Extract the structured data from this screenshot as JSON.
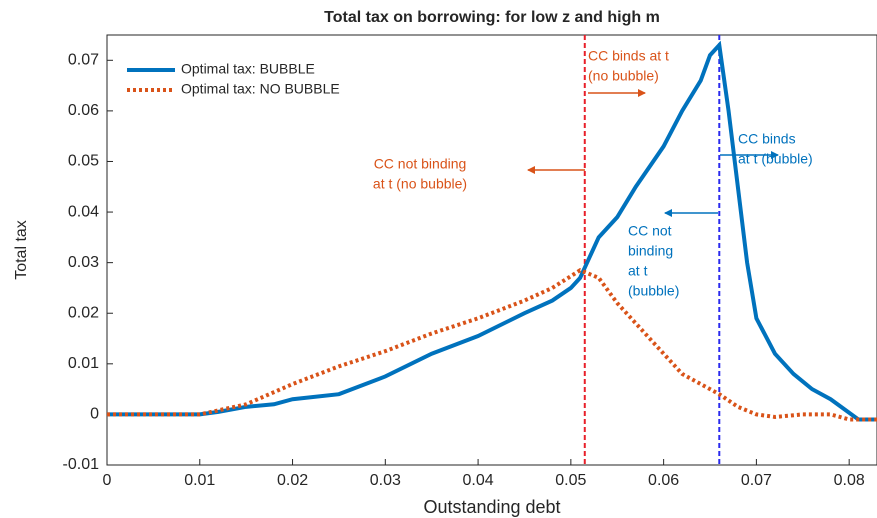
{
  "chart_data": {
    "type": "line",
    "title": "Total tax on borrowing: for low z and high m",
    "x_label": "Outstanding debt",
    "y_label": "Total tax",
    "xlim": [
      0,
      0.083
    ],
    "ylim": [
      -0.01,
      0.075
    ],
    "xticks": [
      0,
      0.01,
      0.02,
      0.03,
      0.04,
      0.05,
      0.06,
      0.07,
      0.08
    ],
    "yticks": [
      -0.01,
      0,
      0.01,
      0.02,
      0.03,
      0.04,
      0.05,
      0.06,
      0.07
    ],
    "legend": "upper left",
    "series": [
      {
        "name": "Optimal tax: BUBBLE",
        "color": "#0072bd",
        "style": "solid",
        "x": [
          0,
          0.005,
          0.01,
          0.012,
          0.015,
          0.018,
          0.02,
          0.025,
          0.03,
          0.035,
          0.04,
          0.045,
          0.048,
          0.05,
          0.051,
          0.052,
          0.053,
          0.055,
          0.057,
          0.06,
          0.062,
          0.064,
          0.065,
          0.066,
          0.067,
          0.068,
          0.069,
          0.07,
          0.072,
          0.074,
          0.076,
          0.078,
          0.081,
          0.083
        ],
        "values": [
          0,
          0,
          0,
          0.0005,
          0.0015,
          0.002,
          0.003,
          0.004,
          0.0075,
          0.012,
          0.0155,
          0.02,
          0.0225,
          0.025,
          0.027,
          0.031,
          0.035,
          0.039,
          0.045,
          0.053,
          0.06,
          0.066,
          0.071,
          0.073,
          0.06,
          0.045,
          0.03,
          0.019,
          0.012,
          0.008,
          0.005,
          0.003,
          -0.001,
          -0.001
        ]
      },
      {
        "name": "Optimal tax: NO BUBBLE",
        "color": "#d95319",
        "style": "dotted",
        "x": [
          0,
          0.01,
          0.015,
          0.02,
          0.025,
          0.03,
          0.035,
          0.04,
          0.045,
          0.048,
          0.051,
          0.053,
          0.055,
          0.058,
          0.06,
          0.062,
          0.064,
          0.066,
          0.068,
          0.07,
          0.072,
          0.075,
          0.078,
          0.08,
          0.083
        ],
        "values": [
          0,
          0,
          0.002,
          0.006,
          0.0095,
          0.0125,
          0.016,
          0.019,
          0.0225,
          0.025,
          0.0285,
          0.027,
          0.022,
          0.016,
          0.012,
          0.008,
          0.006,
          0.004,
          0.0015,
          0,
          -0.0005,
          0,
          0,
          -0.001,
          -0.001
        ]
      }
    ],
    "vlines": [
      {
        "x": 0.0515,
        "color": "#e8202a"
      },
      {
        "x": 0.066,
        "color": "#2a2aee"
      }
    ],
    "annotations": [
      {
        "lines": [
          "CC  binds at t",
          "(no bubble)"
        ],
        "color": "#d95319"
      },
      {
        "lines": [
          "CC not binding",
          "at t (no bubble)"
        ],
        "color": "#d95319"
      },
      {
        "lines": [
          "CC  binds",
          "at t (bubble)"
        ],
        "color": "#0072bd"
      },
      {
        "lines": [
          "CC not",
          "binding",
          "at t",
          "(bubble)"
        ],
        "color": "#0072bd"
      }
    ]
  }
}
